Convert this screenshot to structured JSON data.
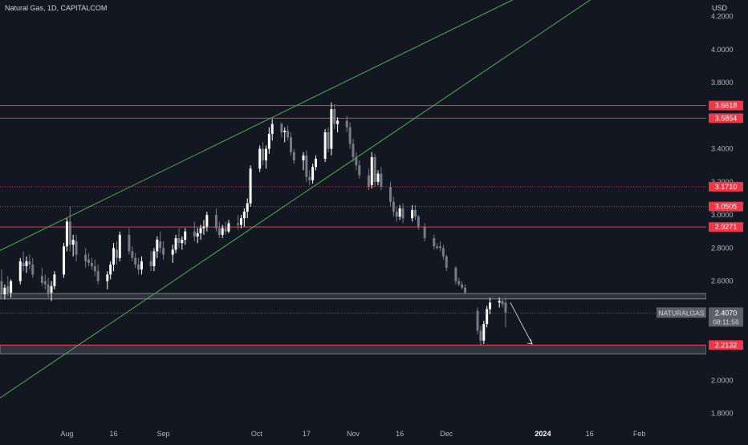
{
  "header": {
    "title": "Natural Gas, 1D, CAPITALCOM",
    "currency": "USD"
  },
  "chart_data": {
    "type": "candlestick",
    "ylim": [
      1.73,
      4.3
    ],
    "y_ticks": [
      "4.2000",
      "4.0000",
      "3.8000",
      "3.4000",
      "3.2000",
      "3.0000",
      "2.8000",
      "2.6000",
      "2.0000",
      "1.8000"
    ],
    "x_ticks": [
      {
        "label": "Aug",
        "date": "2023-08-01"
      },
      {
        "label": "16",
        "date": "2023-08-16"
      },
      {
        "label": "Sep",
        "date": "2023-09-01"
      },
      {
        "label": "Oct",
        "date": "2023-10-01"
      },
      {
        "label": "17",
        "date": "2023-10-17"
      },
      {
        "label": "Nov",
        "date": "2023-11-01"
      },
      {
        "label": "16",
        "date": "2023-11-16"
      },
      {
        "label": "Dec",
        "date": "2023-12-01"
      },
      {
        "label": "2024",
        "date": "2024-01-01"
      },
      {
        "label": "16",
        "date": "2024-01-16"
      },
      {
        "label": "Feb",
        "date": "2024-02-01"
      }
    ],
    "x_start": "2023-07-11",
    "x_end": "2024-02-22",
    "candles": [
      [
        "2023-07-11",
        2.6,
        2.67,
        2.49,
        2.52
      ],
      [
        "2023-07-12",
        2.52,
        2.58,
        2.49,
        2.56
      ],
      [
        "2023-07-13",
        2.57,
        2.63,
        2.51,
        2.53
      ],
      [
        "2023-07-14",
        2.53,
        2.61,
        2.5,
        2.6
      ],
      [
        "2023-07-17",
        2.6,
        2.74,
        2.58,
        2.72
      ],
      [
        "2023-07-18",
        2.71,
        2.78,
        2.66,
        2.69
      ],
      [
        "2023-07-19",
        2.69,
        2.75,
        2.65,
        2.72
      ],
      [
        "2023-07-20",
        2.72,
        2.76,
        2.67,
        2.7
      ],
      [
        "2023-07-21",
        2.7,
        2.74,
        2.62,
        2.64
      ],
      [
        "2023-07-24",
        2.63,
        2.68,
        2.57,
        2.59
      ],
      [
        "2023-07-25",
        2.6,
        2.64,
        2.55,
        2.58
      ],
      [
        "2023-07-26",
        2.58,
        2.62,
        2.5,
        2.52
      ],
      [
        "2023-07-27",
        2.53,
        2.6,
        2.48,
        2.57
      ],
      [
        "2023-07-28",
        2.57,
        2.66,
        2.55,
        2.64
      ],
      [
        "2023-07-31",
        2.64,
        2.83,
        2.62,
        2.81
      ],
      [
        "2023-08-01",
        2.81,
        2.98,
        2.78,
        2.96
      ],
      [
        "2023-08-02",
        2.96,
        3.05,
        2.78,
        2.82
      ],
      [
        "2023-08-03",
        2.82,
        2.88,
        2.75,
        2.85
      ],
      [
        "2023-08-04",
        2.84,
        2.88,
        2.72,
        2.76
      ],
      [
        "2023-08-07",
        2.76,
        2.8,
        2.68,
        2.72
      ],
      [
        "2023-08-08",
        2.73,
        2.77,
        2.69,
        2.71
      ],
      [
        "2023-08-09",
        2.71,
        2.74,
        2.67,
        2.69
      ],
      [
        "2023-08-10",
        2.69,
        2.73,
        2.63,
        2.66
      ],
      [
        "2023-08-11",
        2.66,
        2.7,
        2.58,
        2.6
      ],
      [
        "2023-08-14",
        2.6,
        2.66,
        2.55,
        2.64
      ],
      [
        "2023-08-15",
        2.64,
        2.72,
        2.61,
        2.7
      ],
      [
        "2023-08-16",
        2.7,
        2.83,
        2.66,
        2.8
      ],
      [
        "2023-08-17",
        2.79,
        2.84,
        2.7,
        2.74
      ],
      [
        "2023-08-18",
        2.74,
        2.9,
        2.72,
        2.88
      ],
      [
        "2023-08-21",
        2.88,
        2.92,
        2.76,
        2.78
      ],
      [
        "2023-08-22",
        2.78,
        2.81,
        2.72,
        2.74
      ],
      [
        "2023-08-23",
        2.74,
        2.77,
        2.68,
        2.7
      ],
      [
        "2023-08-24",
        2.7,
        2.74,
        2.64,
        2.67
      ],
      [
        "2023-08-25",
        2.67,
        2.75,
        2.64,
        2.72
      ],
      [
        "2023-08-28",
        2.72,
        2.78,
        2.66,
        2.69
      ],
      [
        "2023-08-29",
        2.69,
        2.8,
        2.66,
        2.78
      ],
      [
        "2023-08-30",
        2.78,
        2.87,
        2.74,
        2.85
      ],
      [
        "2023-08-31",
        2.84,
        2.9,
        2.77,
        2.8
      ],
      [
        "2023-09-01",
        2.8,
        2.84,
        2.73,
        2.76
      ],
      [
        "2023-09-04",
        2.76,
        2.82,
        2.71,
        2.79
      ],
      [
        "2023-09-05",
        2.79,
        2.88,
        2.77,
        2.86
      ],
      [
        "2023-09-06",
        2.86,
        2.92,
        2.8,
        2.83
      ],
      [
        "2023-09-07",
        2.83,
        2.87,
        2.79,
        2.85
      ],
      [
        "2023-09-08",
        2.85,
        2.92,
        2.82,
        2.9
      ],
      [
        "2023-09-11",
        2.9,
        2.96,
        2.84,
        2.87
      ],
      [
        "2023-09-12",
        2.87,
        2.92,
        2.83,
        2.89
      ],
      [
        "2023-09-13",
        2.89,
        2.94,
        2.85,
        2.92
      ],
      [
        "2023-09-14",
        2.92,
        2.97,
        2.88,
        2.93
      ],
      [
        "2023-09-15",
        2.93,
        3.02,
        2.9,
        3.0
      ],
      [
        "2023-09-18",
        3.0,
        3.04,
        2.9,
        2.92
      ],
      [
        "2023-09-19",
        2.92,
        2.96,
        2.86,
        2.88
      ],
      [
        "2023-09-20",
        2.88,
        2.94,
        2.86,
        2.92
      ],
      [
        "2023-09-21",
        2.92,
        2.96,
        2.88,
        2.9
      ],
      [
        "2023-09-22",
        2.9,
        2.97,
        2.89,
        2.95
      ],
      [
        "2023-09-25",
        2.95,
        3.0,
        2.91,
        2.94
      ],
      [
        "2023-09-26",
        2.94,
        3.0,
        2.92,
        2.98
      ],
      [
        "2023-09-27",
        2.98,
        3.04,
        2.93,
        3.02
      ],
      [
        "2023-09-28",
        3.02,
        3.1,
        2.98,
        3.07
      ],
      [
        "2023-09-29",
        3.07,
        3.3,
        3.05,
        3.28
      ],
      [
        "2023-10-02",
        3.28,
        3.42,
        3.26,
        3.4
      ],
      [
        "2023-10-03",
        3.4,
        3.44,
        3.3,
        3.33
      ],
      [
        "2023-10-04",
        3.33,
        3.42,
        3.28,
        3.4
      ],
      [
        "2023-10-05",
        3.4,
        3.53,
        3.37,
        3.49
      ],
      [
        "2023-10-06",
        3.49,
        3.58,
        3.45,
        3.55
      ],
      [
        "2023-10-09",
        3.55,
        3.56,
        3.47,
        3.5
      ],
      [
        "2023-10-10",
        3.5,
        3.53,
        3.44,
        3.51
      ],
      [
        "2023-10-11",
        3.51,
        3.54,
        3.45,
        3.47
      ],
      [
        "2023-10-12",
        3.47,
        3.5,
        3.36,
        3.38
      ],
      [
        "2023-10-13",
        3.38,
        3.4,
        3.31,
        3.33
      ],
      [
        "2023-10-16",
        3.33,
        3.38,
        3.27,
        3.36
      ],
      [
        "2023-10-17",
        3.36,
        3.39,
        3.2,
        3.23
      ],
      [
        "2023-10-18",
        3.23,
        3.27,
        3.18,
        3.21
      ],
      [
        "2023-10-19",
        3.21,
        3.31,
        3.19,
        3.29
      ],
      [
        "2023-10-20",
        3.29,
        3.36,
        3.27,
        3.34
      ],
      [
        "2023-10-23",
        3.34,
        3.52,
        3.32,
        3.5
      ],
      [
        "2023-10-24",
        3.5,
        3.53,
        3.38,
        3.4
      ],
      [
        "2023-10-25",
        3.4,
        3.68,
        3.36,
        3.64
      ],
      [
        "2023-10-26",
        3.64,
        3.67,
        3.52,
        3.55
      ],
      [
        "2023-10-27",
        3.55,
        3.59,
        3.5,
        3.57
      ],
      [
        "2023-10-30",
        3.57,
        3.6,
        3.5,
        3.53
      ],
      [
        "2023-10-31",
        3.53,
        3.56,
        3.4,
        3.43
      ],
      [
        "2023-11-01",
        3.43,
        3.46,
        3.32,
        3.35
      ],
      [
        "2023-11-02",
        3.35,
        3.38,
        3.27,
        3.3
      ],
      [
        "2023-11-03",
        3.3,
        3.33,
        3.22,
        3.24
      ],
      [
        "2023-11-06",
        3.24,
        3.28,
        3.15,
        3.17
      ],
      [
        "2023-11-07",
        3.18,
        3.38,
        3.16,
        3.35
      ],
      [
        "2023-11-08",
        3.35,
        3.37,
        3.17,
        3.2
      ],
      [
        "2023-11-09",
        3.2,
        3.27,
        3.18,
        3.25
      ],
      [
        "2023-11-10",
        3.25,
        3.29,
        3.15,
        3.17
      ],
      [
        "2023-11-13",
        3.17,
        3.2,
        3.05,
        3.08
      ],
      [
        "2023-11-14",
        3.08,
        3.11,
        2.99,
        3.02
      ],
      [
        "2023-11-15",
        3.02,
        3.05,
        2.96,
        2.99
      ],
      [
        "2023-11-16",
        2.99,
        3.06,
        2.97,
        3.04
      ],
      [
        "2023-11-17",
        3.04,
        3.07,
        2.95,
        2.98
      ],
      [
        "2023-11-20",
        2.98,
        3.06,
        2.96,
        3.03
      ],
      [
        "2023-11-21",
        3.03,
        3.06,
        2.97,
        2.99
      ],
      [
        "2023-11-22",
        2.99,
        3.0,
        2.91,
        2.93
      ],
      [
        "2023-11-24",
        2.93,
        2.95,
        2.84,
        2.86
      ],
      [
        "2023-11-27",
        2.86,
        2.88,
        2.79,
        2.81
      ],
      [
        "2023-11-28",
        2.81,
        2.83,
        2.79,
        2.8
      ],
      [
        "2023-11-29",
        2.81,
        2.84,
        2.78,
        2.8
      ],
      [
        "2023-11-30",
        2.8,
        2.82,
        2.73,
        2.75
      ],
      [
        "2023-12-01",
        2.75,
        2.76,
        2.66,
        2.68
      ],
      [
        "2023-12-04",
        2.68,
        2.69,
        2.58,
        2.6
      ],
      [
        "2023-12-05",
        2.6,
        2.62,
        2.57,
        2.58
      ],
      [
        "2023-12-06",
        2.58,
        2.6,
        2.55,
        2.56
      ],
      [
        "2023-12-07",
        2.56,
        2.58,
        2.52,
        2.53
      ],
      [
        "2023-12-11",
        2.42,
        2.44,
        2.28,
        2.3
      ],
      [
        "2023-12-12",
        2.3,
        2.33,
        2.21,
        2.24
      ],
      [
        "2023-12-13",
        2.24,
        2.36,
        2.22,
        2.34
      ],
      [
        "2023-12-14",
        2.34,
        2.45,
        2.32,
        2.43
      ],
      [
        "2023-12-15",
        2.43,
        2.5,
        2.4,
        2.47
      ],
      [
        "2023-12-18",
        2.47,
        2.5,
        2.44,
        2.48
      ],
      [
        "2023-12-19",
        2.48,
        2.49,
        2.44,
        2.46
      ],
      [
        "2023-12-20",
        2.47,
        2.5,
        2.32,
        2.41
      ]
    ],
    "horizontal_levels": [
      {
        "price": 3.6618,
        "label": "3.6618",
        "style": "solid"
      },
      {
        "price": 3.5854,
        "label": "3.5854",
        "style": "solid"
      },
      {
        "price": 3.171,
        "label": "3.1710",
        "style": "dotted"
      },
      {
        "price": 3.0505,
        "label": "3.0505",
        "style": "dotted"
      },
      {
        "price": 2.9271,
        "label": "2.9271",
        "style": "solid"
      },
      {
        "price": 2.2132,
        "label": "2.2132",
        "style": "solid-marker"
      }
    ],
    "zones": [
      {
        "from": 2.492,
        "to": 2.525
      },
      {
        "from": 2.16,
        "to": 2.2132
      }
    ],
    "trendlines": [
      {
        "p1": [
          "2023-07-11",
          2.79
        ],
        "p2": [
          "2023-10-06",
          3.59
        ],
        "color": "#4caf50",
        "extend": true
      },
      {
        "p1": [
          "2023-07-11",
          1.9
        ],
        "p2": [
          "2023-11-22",
          3.6
        ],
        "color": "#4caf50",
        "extend": true
      }
    ],
    "arrow": {
      "from": [
        "2023-12-20",
        2.47
      ],
      "to": [
        "2023-12-27",
        2.22
      ]
    },
    "current": {
      "symbol": "NATURALGAS",
      "price": "2.4070",
      "countdown": "08:11:56",
      "value": 2.407
    }
  }
}
